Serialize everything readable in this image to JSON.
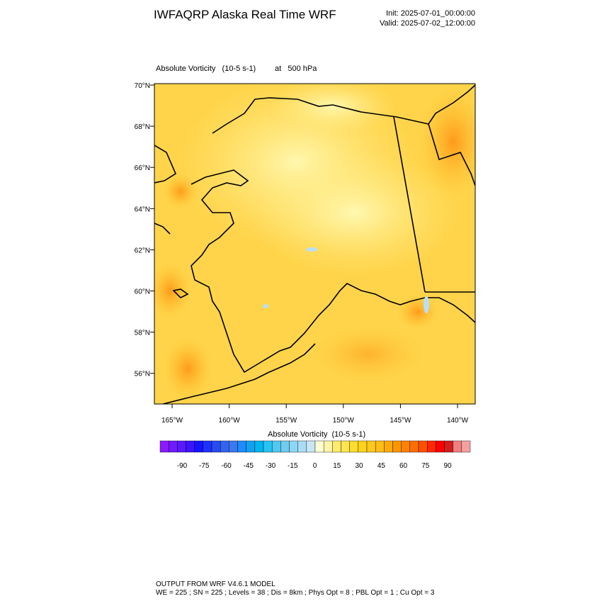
{
  "header": {
    "title": "IWFAQRP Alaska Real Time WRF",
    "init": "Init: 2025-07-01_00:00:00",
    "valid": "Valid: 2025-07-02_12:00:00"
  },
  "field": {
    "name": "Absolute Vorticity   (10-5 s-1)",
    "level": "at   500 hPa"
  },
  "map": {
    "lat_labels": [
      "70°N",
      "68°N",
      "66°N",
      "64°N",
      "62°N",
      "60°N",
      "58°N",
      "56°N"
    ],
    "lon_labels": [
      "165°W",
      "160°W",
      "155°W",
      "150°W",
      "145°W",
      "140°W"
    ]
  },
  "colorbar": {
    "title": "Absolute Vorticity  (10-5 s-1)",
    "labels": [
      -90,
      -75,
      -60,
      -45,
      -30,
      -15,
      0,
      15,
      30,
      45,
      60,
      75,
      90
    ],
    "colors": [
      "#8c1aff",
      "#6f1aff",
      "#5a1aff",
      "#3c14ff",
      "#1414ff",
      "#1e32ff",
      "#284bf0",
      "#3264f0",
      "#3c78f0",
      "#1e8cff",
      "#14a0f0",
      "#00b4f0",
      "#28c3f5",
      "#50c8f0",
      "#6ecdf0",
      "#8cd7f5",
      "#aadcf5",
      "#c8e6f5",
      "#ffffd2",
      "#fff5aa",
      "#ffeb6e",
      "#ffe650",
      "#ffdc32",
      "#ffd21e",
      "#ffc81e",
      "#ffbe14",
      "#ffaa0a",
      "#ff9600",
      "#ff8200",
      "#ff6e00",
      "#ff5000",
      "#ff2800",
      "#ff0000",
      "#d21e1e",
      "#f08080",
      "#f5a0a0"
    ]
  },
  "footer": {
    "line1": "OUTPUT FROM WRF V4.6.1 MODEL",
    "line2": "WE = 225 ; SN = 225 ; Levels = 38 ; Dis = 8km ; Phys Opt = 8 ; PBL Opt = 1 ; Cu Opt = 3"
  }
}
